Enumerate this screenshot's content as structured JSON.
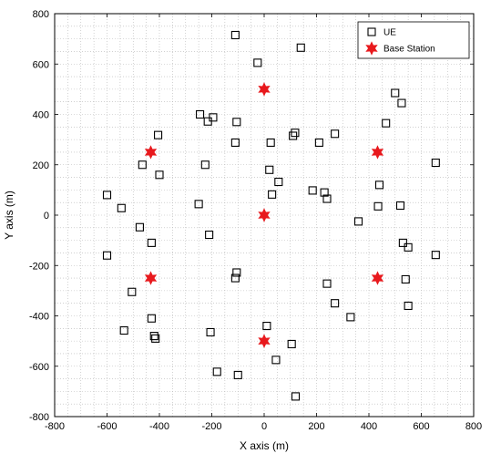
{
  "chart_data": {
    "type": "scatter",
    "title": "",
    "xlabel": "X axis (m)",
    "ylabel": "Y axis (m)",
    "xlim": [
      -800,
      800
    ],
    "ylim": [
      -800,
      800
    ],
    "xticks": [
      -800,
      -600,
      -400,
      -200,
      0,
      200,
      400,
      600,
      800
    ],
    "yticks": [
      -800,
      -600,
      -400,
      -200,
      0,
      200,
      400,
      600,
      800
    ],
    "xtick_labels": [
      "-800",
      "-600",
      "-400",
      "-200",
      "0",
      "200",
      "400",
      "600",
      "800"
    ],
    "ytick_labels": [
      "-800",
      "-600",
      "-400",
      "-200",
      "0",
      "200",
      "400",
      "600",
      "800"
    ],
    "grid": true,
    "legend_position": "top-right",
    "series": [
      {
        "name": "UE",
        "marker": "square",
        "color": "#000000",
        "points": [
          [
            -110,
            715
          ],
          [
            140,
            665
          ],
          [
            -25,
            605
          ],
          [
            500,
            485
          ],
          [
            525,
            445
          ],
          [
            -245,
            400
          ],
          [
            -195,
            388
          ],
          [
            -215,
            372
          ],
          [
            -105,
            370
          ],
          [
            -405,
            318
          ],
          [
            465,
            365
          ],
          [
            110,
            315
          ],
          [
            118,
            327
          ],
          [
            270,
            323
          ],
          [
            -110,
            288
          ],
          [
            25,
            288
          ],
          [
            210,
            288
          ],
          [
            -465,
            200
          ],
          [
            -225,
            200
          ],
          [
            -400,
            160
          ],
          [
            20,
            180
          ],
          [
            655,
            208
          ],
          [
            -600,
            80
          ],
          [
            -545,
            28
          ],
          [
            -250,
            44
          ],
          [
            185,
            98
          ],
          [
            230,
            90
          ],
          [
            240,
            65
          ],
          [
            30,
            82
          ],
          [
            55,
            132
          ],
          [
            440,
            120
          ],
          [
            520,
            38
          ],
          [
            435,
            35
          ],
          [
            360,
            -25
          ],
          [
            -475,
            -48
          ],
          [
            -430,
            -110
          ],
          [
            -210,
            -78
          ],
          [
            -600,
            -160
          ],
          [
            530,
            -110
          ],
          [
            550,
            -128
          ],
          [
            655,
            -158
          ],
          [
            -105,
            -228
          ],
          [
            -110,
            -250
          ],
          [
            -505,
            -305
          ],
          [
            240,
            -272
          ],
          [
            540,
            -255
          ],
          [
            270,
            -350
          ],
          [
            550,
            -360
          ],
          [
            330,
            -405
          ],
          [
            -535,
            -458
          ],
          [
            -430,
            -410
          ],
          [
            -205,
            -465
          ],
          [
            10,
            -440
          ],
          [
            -420,
            -480
          ],
          [
            -415,
            -490
          ],
          [
            105,
            -512
          ],
          [
            45,
            -575
          ],
          [
            -180,
            -622
          ],
          [
            -100,
            -635
          ],
          [
            120,
            -720
          ]
        ]
      },
      {
        "name": "Base Station",
        "marker": "star",
        "color": "#e8191d",
        "points": [
          [
            0,
            500
          ],
          [
            -433,
            250
          ],
          [
            433,
            250
          ],
          [
            0,
            0
          ],
          [
            -433,
            -250
          ],
          [
            433,
            -250
          ],
          [
            0,
            -500
          ]
        ]
      }
    ]
  }
}
